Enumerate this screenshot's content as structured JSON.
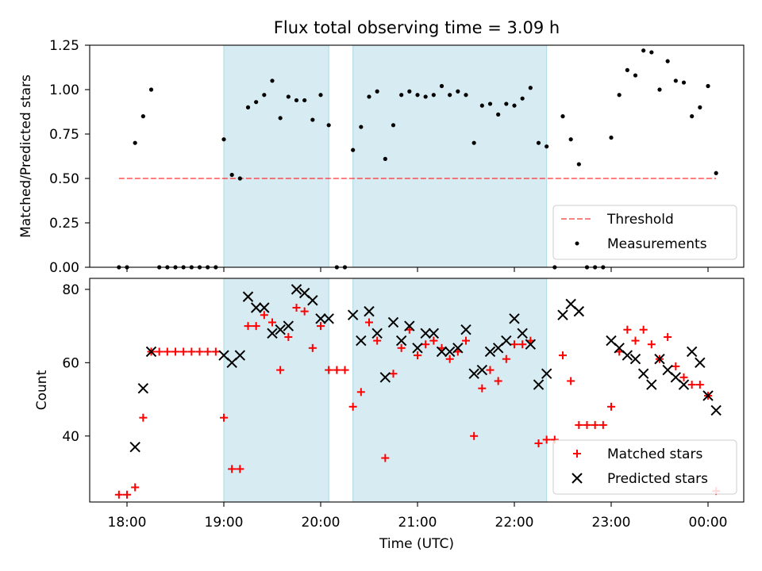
{
  "title": "Flux total observing time = 3.09 h",
  "colors": {
    "band": "#add8e6",
    "threshold": "#ff0000",
    "measurement": "#000000",
    "matched": "#ff0000",
    "predicted": "#000000"
  },
  "chart_data": [
    {
      "type": "scatter",
      "id": "ratio",
      "ylabel": "Matched/Predicted stars",
      "ylim": [
        0,
        1.25
      ],
      "yticks": [
        0.0,
        0.25,
        0.5,
        0.75,
        1.0,
        1.25
      ],
      "ytick_labels": [
        "0.00",
        "0.25",
        "0.50",
        "0.75",
        "1.00",
        "1.25"
      ],
      "shaded_bands": [
        [
          "19:00",
          "20:05"
        ],
        [
          "20:20",
          "22:20"
        ]
      ],
      "legend": {
        "position": "lower right",
        "entries": [
          "Threshold",
          "Measurements"
        ]
      },
      "threshold": {
        "name": "Threshold",
        "value": 0.5,
        "x_range": [
          "17:55",
          "00:05"
        ]
      },
      "series": [
        {
          "name": "Measurements",
          "times": [
            "17:55",
            "18:00",
            "18:05",
            "18:10",
            "18:15",
            "18:20",
            "18:25",
            "18:30",
            "18:35",
            "18:40",
            "18:45",
            "18:50",
            "18:55",
            "19:00",
            "19:05",
            "19:10",
            "19:15",
            "19:20",
            "19:25",
            "19:30",
            "19:35",
            "19:40",
            "19:45",
            "19:50",
            "19:55",
            "20:00",
            "20:05",
            "20:10",
            "20:15",
            "20:20",
            "20:25",
            "20:30",
            "20:35",
            "20:40",
            "20:45",
            "20:50",
            "20:55",
            "21:00",
            "21:05",
            "21:10",
            "21:15",
            "21:20",
            "21:25",
            "21:30",
            "21:35",
            "21:40",
            "21:45",
            "21:50",
            "21:55",
            "22:00",
            "22:05",
            "22:10",
            "22:15",
            "22:20",
            "22:25",
            "22:30",
            "22:35",
            "22:40",
            "22:45",
            "22:50",
            "22:55",
            "23:00",
            "23:05",
            "23:10",
            "23:15",
            "23:20",
            "23:25",
            "23:30",
            "23:35",
            "23:40",
            "23:45",
            "23:50",
            "23:55",
            "00:00",
            "00:05"
          ],
          "values": [
            0,
            0,
            0.7,
            0.85,
            1.0,
            0,
            0,
            0,
            0,
            0,
            0,
            0,
            0,
            0.72,
            0.52,
            0.5,
            0.9,
            0.93,
            0.97,
            1.05,
            0.84,
            0.96,
            0.94,
            0.94,
            0.83,
            0.97,
            0.8,
            0,
            0,
            0.66,
            0.79,
            0.96,
            0.99,
            0.61,
            0.8,
            0.97,
            0.99,
            0.97,
            0.96,
            0.97,
            1.02,
            0.97,
            0.99,
            0.97,
            0.7,
            0.91,
            0.92,
            0.86,
            0.92,
            0.91,
            0.95,
            1.01,
            0.7,
            0.68,
            0,
            0.85,
            0.72,
            0.58,
            0,
            0,
            0,
            0.73,
            0.97,
            1.11,
            1.08,
            1.22,
            1.21,
            1.0,
            1.16,
            1.05,
            1.04,
            0.85,
            0.9,
            1.02,
            0.53
          ]
        }
      ]
    },
    {
      "type": "scatter",
      "id": "count",
      "xlabel": "Time (UTC)",
      "ylabel": "Count",
      "ylim": [
        22,
        83
      ],
      "yticks": [
        40,
        60,
        80
      ],
      "ytick_labels": [
        "40",
        "60",
        "80"
      ],
      "xticks": [
        "18:00",
        "19:00",
        "20:00",
        "21:00",
        "22:00",
        "23:00",
        "00:00"
      ],
      "shaded_bands": [
        [
          "19:00",
          "20:05"
        ],
        [
          "20:20",
          "22:20"
        ]
      ],
      "legend": {
        "position": "lower right",
        "entries": [
          "Matched stars",
          "Predicted stars"
        ]
      },
      "series": [
        {
          "name": "Matched stars",
          "times": [
            "17:55",
            "18:00",
            "18:05",
            "18:10",
            "18:15",
            "18:20",
            "18:25",
            "18:30",
            "18:35",
            "18:40",
            "18:45",
            "18:50",
            "18:55",
            "19:00",
            "19:05",
            "19:10",
            "19:15",
            "19:20",
            "19:25",
            "19:30",
            "19:35",
            "19:40",
            "19:45",
            "19:50",
            "19:55",
            "20:00",
            "20:05",
            "20:10",
            "20:15",
            "20:20",
            "20:25",
            "20:30",
            "20:35",
            "20:40",
            "20:45",
            "20:50",
            "20:55",
            "21:00",
            "21:05",
            "21:10",
            "21:15",
            "21:20",
            "21:25",
            "21:30",
            "21:35",
            "21:40",
            "21:45",
            "21:50",
            "21:55",
            "22:00",
            "22:05",
            "22:10",
            "22:15",
            "22:20",
            "22:25",
            "22:30",
            "22:35",
            "22:40",
            "22:45",
            "22:50",
            "22:55",
            "23:00",
            "23:05",
            "23:10",
            "23:15",
            "23:20",
            "23:25",
            "23:30",
            "23:35",
            "23:40",
            "23:45",
            "23:50",
            "23:55",
            "00:00",
            "00:05"
          ],
          "values": [
            24,
            24,
            26,
            45,
            63,
            63,
            63,
            63,
            63,
            63,
            63,
            63,
            63,
            45,
            31,
            31,
            70,
            70,
            73,
            71,
            58,
            67,
            75,
            74,
            64,
            70,
            58,
            58,
            58,
            48,
            52,
            71,
            66,
            34,
            57,
            64,
            69,
            62,
            65,
            66,
            64,
            61,
            63,
            66,
            40,
            53,
            58,
            55,
            61,
            65,
            65,
            66,
            38,
            39,
            39,
            62,
            55,
            43,
            43,
            43,
            43,
            48,
            63,
            69,
            66,
            69,
            65,
            61,
            67,
            59,
            56,
            54,
            54,
            51,
            25
          ]
        },
        {
          "name": "Predicted stars",
          "times": [
            "18:05",
            "18:10",
            "18:15",
            "19:00",
            "19:05",
            "19:10",
            "19:15",
            "19:20",
            "19:25",
            "19:30",
            "19:35",
            "19:40",
            "19:45",
            "19:50",
            "19:55",
            "20:00",
            "20:05",
            "20:20",
            "20:25",
            "20:30",
            "20:35",
            "20:40",
            "20:45",
            "20:50",
            "20:55",
            "21:00",
            "21:05",
            "21:10",
            "21:15",
            "21:20",
            "21:25",
            "21:30",
            "21:35",
            "21:40",
            "21:45",
            "21:50",
            "21:55",
            "22:00",
            "22:05",
            "22:10",
            "22:15",
            "22:20",
            "22:30",
            "22:35",
            "22:40",
            "23:00",
            "23:05",
            "23:10",
            "23:15",
            "23:20",
            "23:25",
            "23:30",
            "23:35",
            "23:40",
            "23:45",
            "23:50",
            "23:55",
            "00:00",
            "00:05"
          ],
          "values": [
            37,
            53,
            63,
            62,
            60,
            62,
            78,
            75,
            75,
            68,
            69,
            70,
            80,
            79,
            77,
            72,
            72,
            73,
            66,
            74,
            68,
            56,
            71,
            66,
            70,
            64,
            68,
            68,
            63,
            63,
            64,
            69,
            57,
            58,
            63,
            64,
            66,
            72,
            68,
            65,
            54,
            57,
            73,
            76,
            74,
            66,
            64,
            62,
            61,
            57,
            54,
            61,
            58,
            56,
            54,
            63,
            60,
            51,
            47
          ]
        }
      ]
    }
  ]
}
